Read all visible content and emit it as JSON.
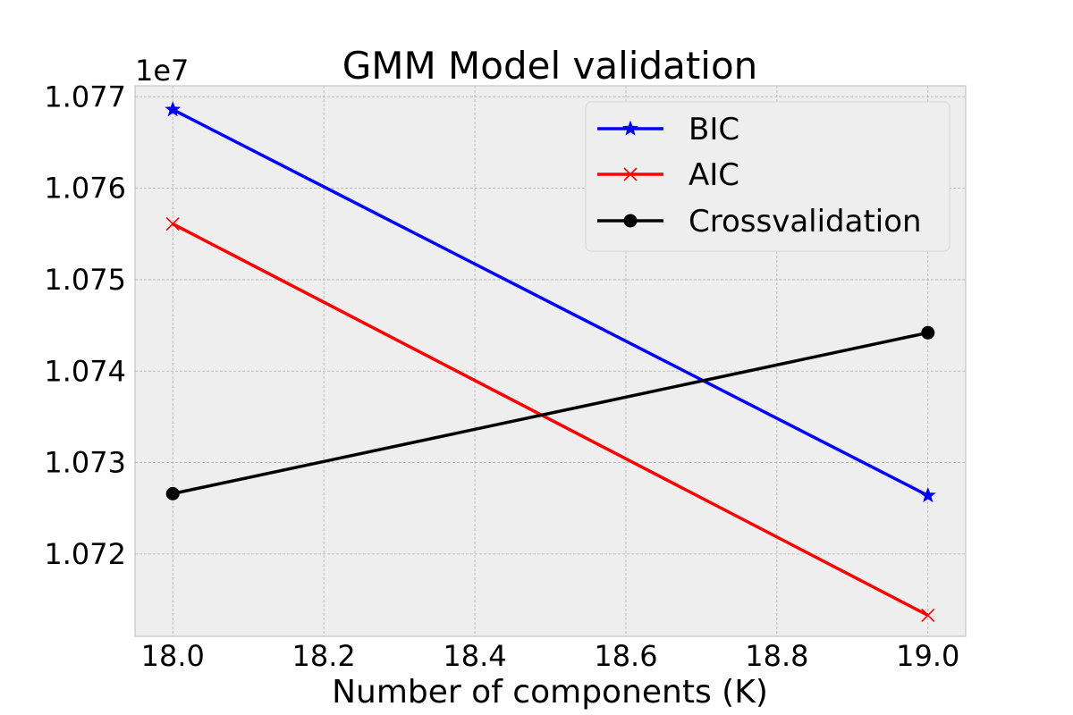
{
  "chart_data": {
    "type": "line",
    "title": "GMM Model validation",
    "xlabel": "Number of components (K)",
    "ylabel": "",
    "y_offset_label": "1e7",
    "y_offset_multiplier": 10000000,
    "x": [
      18.0,
      19.0
    ],
    "xlim": [
      17.95,
      19.05
    ],
    "ylim": [
      10711000,
      10771200
    ],
    "x_ticks": [
      18.0,
      18.2,
      18.4,
      18.6,
      18.8,
      19.0
    ],
    "x_tick_labels": [
      "18.0",
      "18.2",
      "18.4",
      "18.6",
      "18.8",
      "19.0"
    ],
    "y_ticks": [
      10720000,
      10730000,
      10740000,
      10750000,
      10760000,
      10770000
    ],
    "y_tick_labels": [
      "1.072",
      "1.073",
      "1.074",
      "1.075",
      "1.076",
      "1.077"
    ],
    "grid": true,
    "legend_position": "upper-right",
    "series": [
      {
        "name": "BIC",
        "values": [
          10768600,
          10726400
        ],
        "color": "#0000ff",
        "marker": "star"
      },
      {
        "name": "AIC",
        "values": [
          10756100,
          10713300
        ],
        "color": "#ff0000",
        "marker": "x"
      },
      {
        "name": "Crossvalidation",
        "values": [
          10726600,
          10744200
        ],
        "color": "#000000",
        "marker": "circle"
      }
    ]
  }
}
